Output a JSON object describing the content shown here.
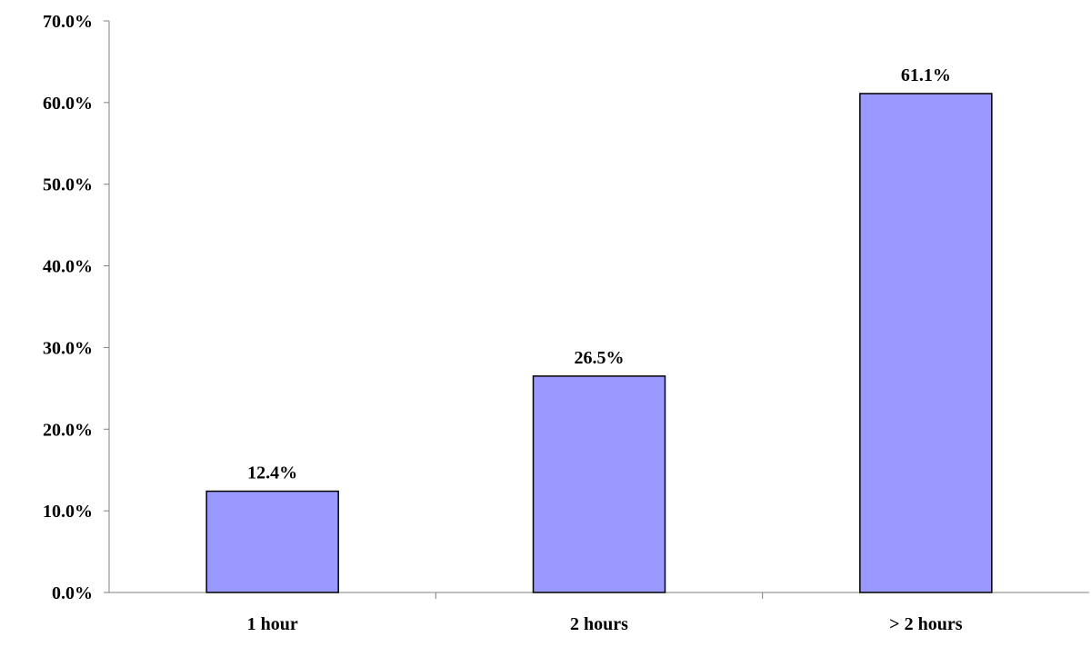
{
  "chart_data": {
    "type": "bar",
    "title": "",
    "xlabel": "",
    "ylabel": "",
    "categories": [
      "1 hour",
      "2 hours",
      "> 2 hours"
    ],
    "values": [
      12.4,
      26.5,
      61.1
    ],
    "data_labels": [
      "12.4%",
      "26.5%",
      "61.1%"
    ],
    "ylim": [
      0,
      70
    ],
    "yticks": [
      0,
      10,
      20,
      30,
      40,
      50,
      60,
      70
    ],
    "ytick_labels": [
      "0.0%",
      "10.0%",
      "20.0%",
      "30.0%",
      "40.0%",
      "50.0%",
      "60.0%",
      "70.0%"
    ],
    "grid": false,
    "legend": "none",
    "colors": {
      "bar_fill": "#9999ff",
      "bar_stroke": "#000000",
      "axis": "#808080",
      "text": "#000000"
    }
  }
}
